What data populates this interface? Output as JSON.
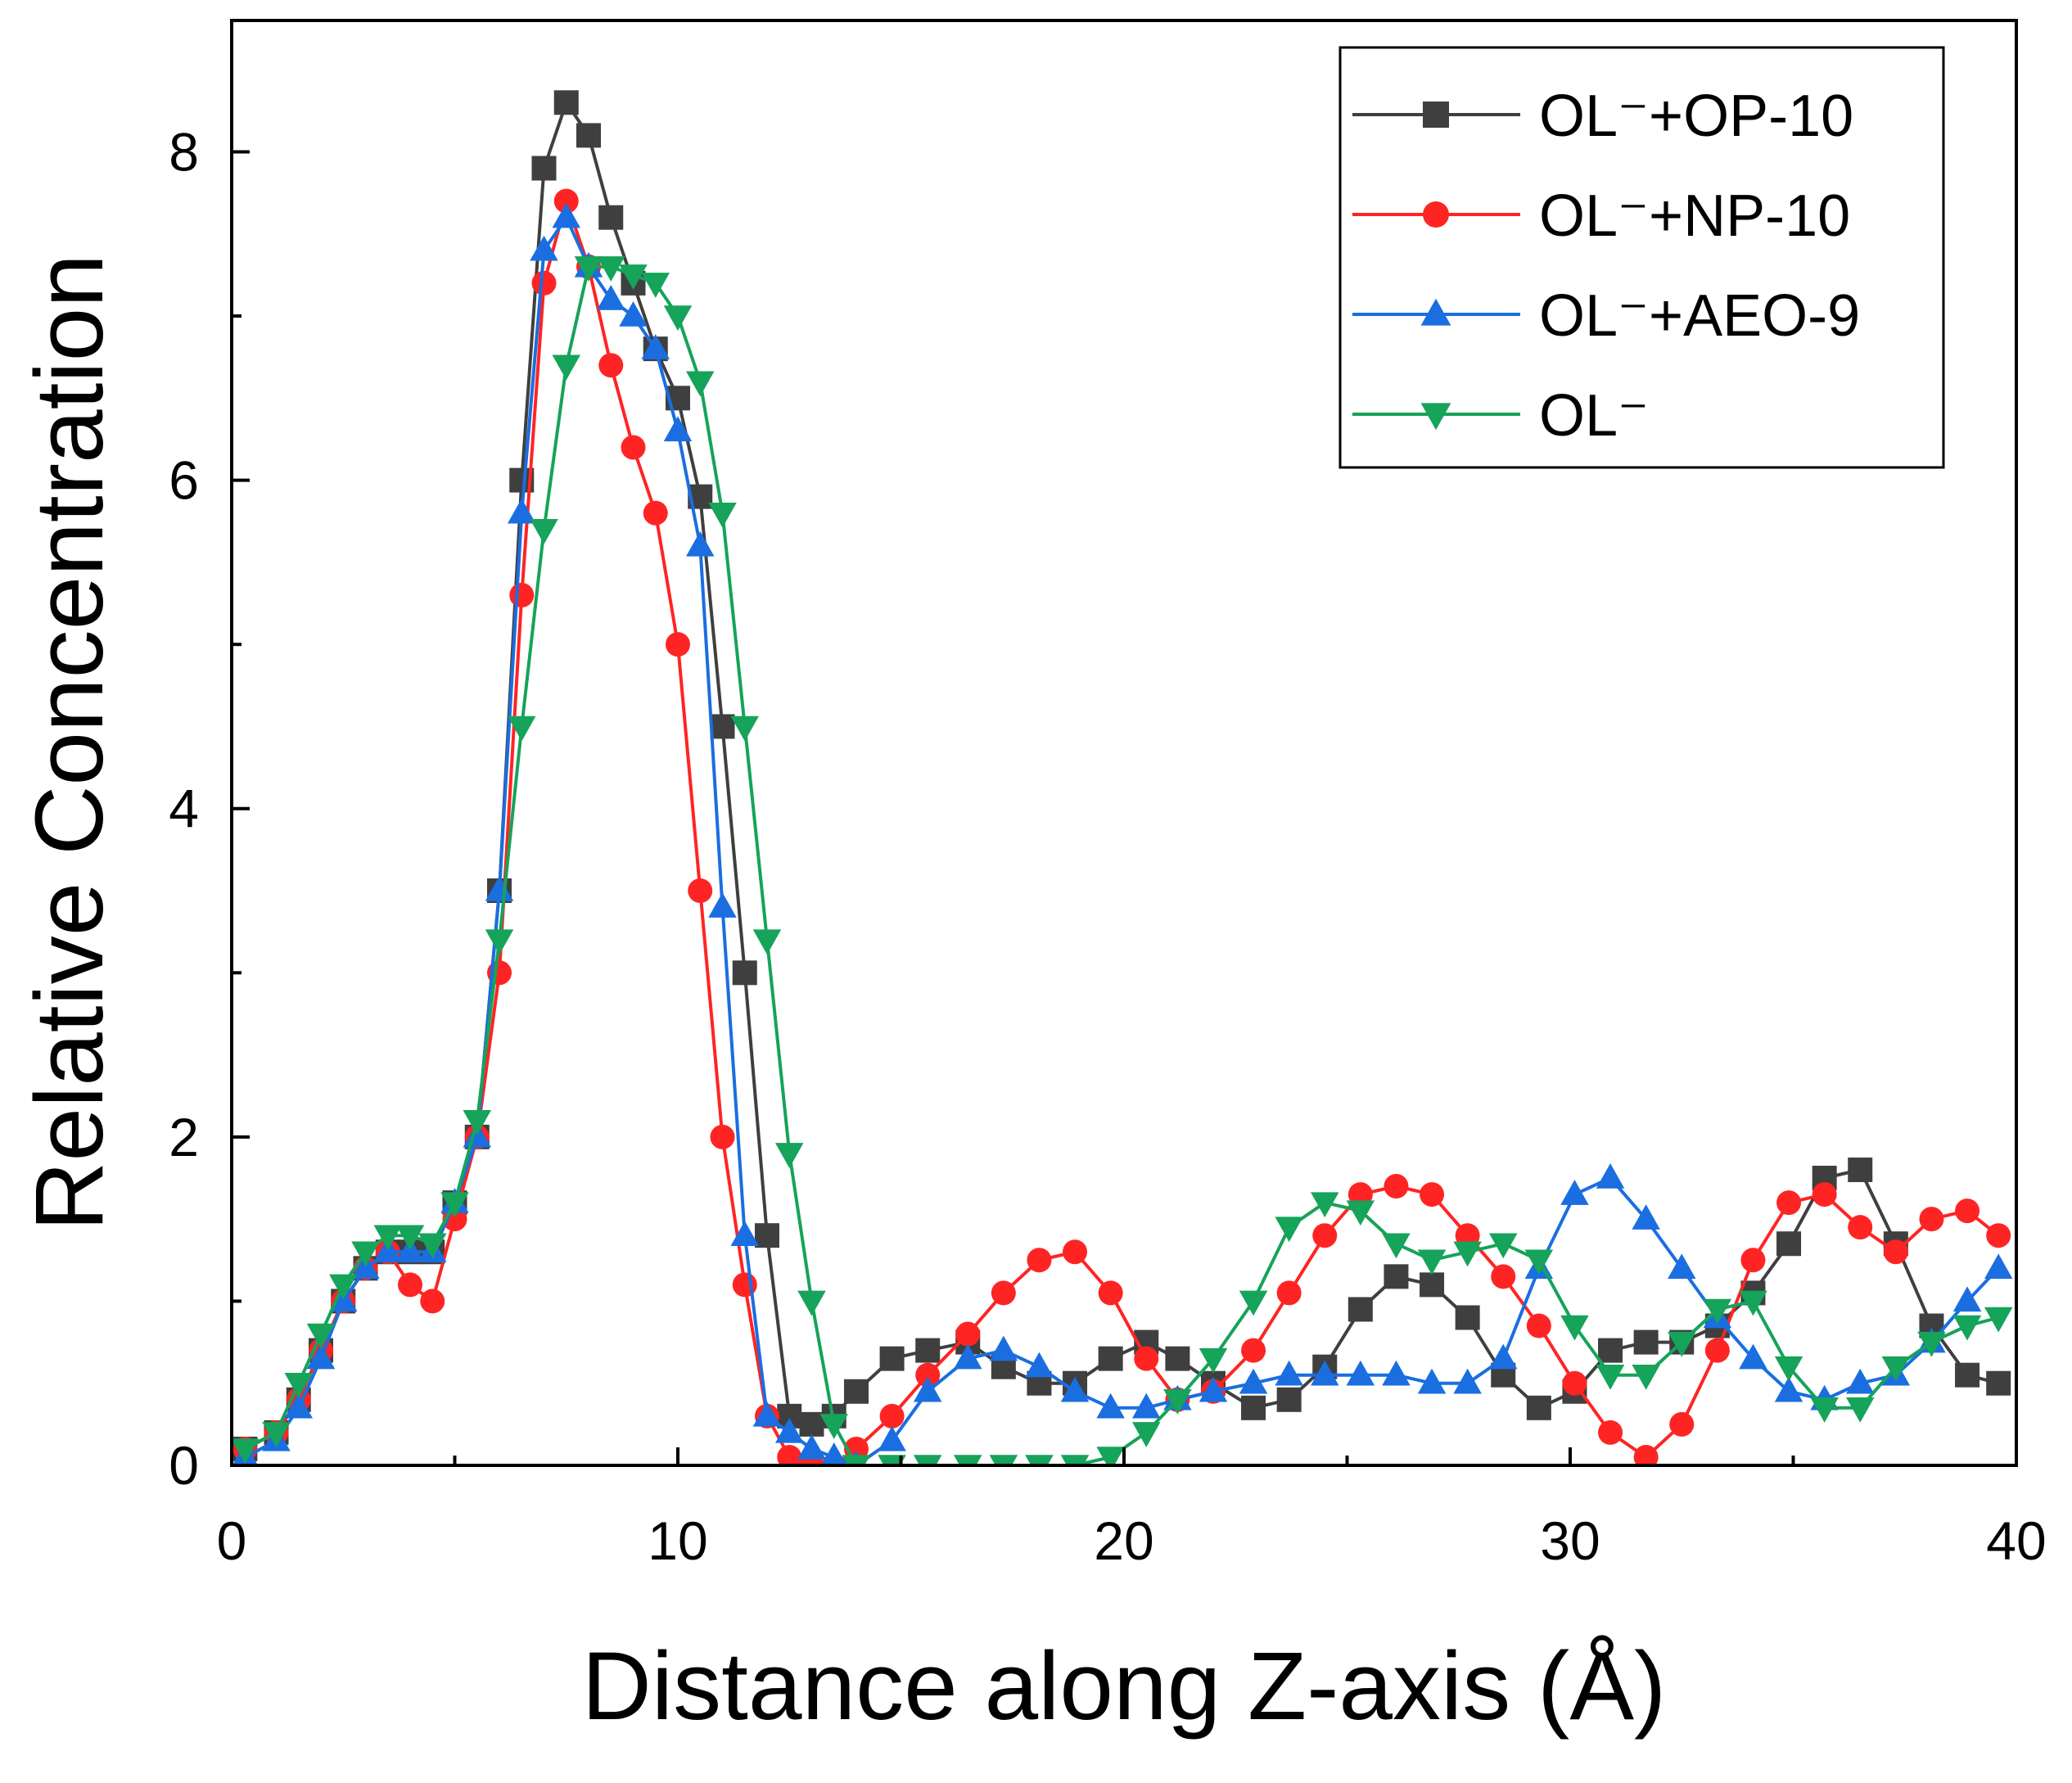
{
  "chart_data": {
    "type": "line",
    "title": "",
    "xlabel": "Distance along Z-axis (Å)",
    "ylabel": "Relative Concentration",
    "xlim": [
      0,
      40
    ],
    "ylim": [
      0,
      8.8
    ],
    "xticks": [
      "0",
      "10",
      "20",
      "30",
      "40"
    ],
    "yticks": [
      "0",
      "2",
      "4",
      "6",
      "8"
    ],
    "xtick_values": [
      0,
      10,
      20,
      30,
      40
    ],
    "ytick_values": [
      0,
      2,
      4,
      6,
      8
    ],
    "grid": false,
    "legend_position": "top-right",
    "series": [
      {
        "name": "OL⁻+OP-10",
        "color": "#3f3f3f",
        "marker": "square",
        "dash": "",
        "x": [
          0.3,
          1.0,
          1.5,
          2.0,
          2.5,
          3.0,
          3.5,
          4.0,
          4.5,
          5.0,
          5.5,
          6.0,
          6.5,
          7.0,
          7.5,
          8.0,
          8.5,
          9.0,
          9.5,
          10.0,
          10.5,
          11.0,
          11.5,
          12.0,
          12.5,
          13.0,
          13.5,
          14.0,
          14.8,
          15.6,
          16.5,
          17.3,
          18.1,
          18.9,
          19.7,
          20.5,
          21.2,
          22.0,
          22.9,
          23.7,
          24.5,
          25.3,
          26.1,
          26.9,
          27.7,
          28.5,
          29.3,
          30.1,
          30.9,
          31.7,
          32.5,
          33.3,
          34.1,
          34.9,
          35.7,
          36.5,
          37.3,
          38.1,
          38.9,
          39.6
        ],
        "values": [
          0.1,
          0.2,
          0.4,
          0.7,
          1.0,
          1.2,
          1.3,
          1.3,
          1.3,
          1.6,
          2.0,
          3.5,
          6.0,
          7.9,
          8.3,
          8.1,
          7.6,
          7.2,
          6.8,
          6.5,
          5.9,
          4.5,
          3.0,
          1.4,
          0.3,
          0.25,
          0.3,
          0.45,
          0.65,
          0.7,
          0.75,
          0.6,
          0.5,
          0.5,
          0.65,
          0.75,
          0.65,
          0.5,
          0.35,
          0.4,
          0.6,
          0.95,
          1.15,
          1.1,
          0.9,
          0.55,
          0.35,
          0.45,
          0.7,
          0.75,
          0.75,
          0.85,
          1.05,
          1.35,
          1.75,
          1.8,
          1.35,
          0.85,
          0.55,
          0.5
        ]
      },
      {
        "name": "OL⁻+NP-10",
        "color": "#ff2424",
        "marker": "circle",
        "dash": "",
        "x": [
          0.3,
          1.0,
          1.5,
          2.0,
          2.5,
          3.0,
          3.5,
          4.0,
          4.5,
          5.0,
          5.5,
          6.0,
          6.5,
          7.0,
          7.5,
          8.0,
          8.5,
          9.0,
          9.5,
          10.0,
          10.5,
          11.0,
          11.5,
          12.0,
          12.5,
          13.0,
          13.5,
          14.0,
          14.8,
          15.6,
          16.5,
          17.3,
          18.1,
          18.9,
          19.7,
          20.5,
          21.2,
          22.0,
          22.9,
          23.7,
          24.5,
          25.3,
          26.1,
          26.9,
          27.7,
          28.5,
          29.3,
          30.1,
          30.9,
          31.7,
          32.5,
          33.3,
          34.1,
          34.9,
          35.7,
          36.5,
          37.3,
          38.1,
          38.9,
          39.6
        ],
        "values": [
          0.1,
          0.2,
          0.4,
          0.7,
          1.0,
          1.2,
          1.3,
          1.1,
          1.0,
          1.5,
          2.0,
          3.0,
          5.3,
          7.2,
          7.7,
          7.3,
          6.7,
          6.2,
          5.8,
          5.0,
          3.5,
          2.0,
          1.1,
          0.3,
          0.05,
          0.0,
          0.0,
          0.1,
          0.3,
          0.55,
          0.8,
          1.05,
          1.25,
          1.3,
          1.05,
          0.65,
          0.4,
          0.45,
          0.7,
          1.05,
          1.4,
          1.65,
          1.7,
          1.65,
          1.4,
          1.15,
          0.85,
          0.5,
          0.2,
          0.05,
          0.25,
          0.7,
          1.25,
          1.6,
          1.65,
          1.45,
          1.3,
          1.5,
          1.55,
          1.4
        ]
      },
      {
        "name": "OL⁻+AEO-9",
        "color": "#1a6ee0",
        "marker": "triangle-up",
        "dash": "",
        "x": [
          0.3,
          1.0,
          1.5,
          2.0,
          2.5,
          3.0,
          3.5,
          4.0,
          4.5,
          5.0,
          5.5,
          6.0,
          6.5,
          7.0,
          7.5,
          8.0,
          8.5,
          9.0,
          9.5,
          10.0,
          10.5,
          11.0,
          11.5,
          12.0,
          12.5,
          13.0,
          13.5,
          14.0,
          14.8,
          15.6,
          16.5,
          17.3,
          18.1,
          18.9,
          19.7,
          20.5,
          21.2,
          22.0,
          22.9,
          23.7,
          24.5,
          25.3,
          26.1,
          26.9,
          27.7,
          28.5,
          29.3,
          30.1,
          30.9,
          31.7,
          32.5,
          33.3,
          34.1,
          34.9,
          35.7,
          36.5,
          37.3,
          38.1,
          38.9,
          39.6
        ],
        "values": [
          0.05,
          0.15,
          0.35,
          0.65,
          1.0,
          1.2,
          1.3,
          1.3,
          1.3,
          1.6,
          2.0,
          3.5,
          5.8,
          7.4,
          7.6,
          7.3,
          7.1,
          7.0,
          6.8,
          6.3,
          5.6,
          3.4,
          1.4,
          0.3,
          0.2,
          0.1,
          0.05,
          0.0,
          0.15,
          0.45,
          0.65,
          0.7,
          0.6,
          0.45,
          0.35,
          0.35,
          0.4,
          0.45,
          0.5,
          0.55,
          0.55,
          0.55,
          0.55,
          0.5,
          0.5,
          0.65,
          1.2,
          1.65,
          1.75,
          1.5,
          1.2,
          0.9,
          0.65,
          0.45,
          0.4,
          0.5,
          0.55,
          0.75,
          1.0,
          1.2
        ]
      },
      {
        "name": "OL⁻",
        "color": "#16a35a",
        "marker": "triangle-down",
        "dash": "",
        "x": [
          0.3,
          1.0,
          1.5,
          2.0,
          2.5,
          3.0,
          3.5,
          4.0,
          4.5,
          5.0,
          5.5,
          6.0,
          6.5,
          7.0,
          7.5,
          8.0,
          8.5,
          9.0,
          9.5,
          10.0,
          10.5,
          11.0,
          11.5,
          12.0,
          12.5,
          13.0,
          13.5,
          14.0,
          14.8,
          15.6,
          16.5,
          17.3,
          18.1,
          18.9,
          19.7,
          20.5,
          21.2,
          22.0,
          22.9,
          23.7,
          24.5,
          25.3,
          26.1,
          26.9,
          27.7,
          28.5,
          29.3,
          30.1,
          30.9,
          31.7,
          32.5,
          33.3,
          34.1,
          34.9,
          35.7,
          36.5,
          37.3,
          38.1,
          38.9,
          39.6
        ],
        "values": [
          0.1,
          0.2,
          0.5,
          0.8,
          1.1,
          1.3,
          1.4,
          1.4,
          1.35,
          1.6,
          2.1,
          3.2,
          4.5,
          5.7,
          6.7,
          7.3,
          7.3,
          7.25,
          7.2,
          7.0,
          6.6,
          5.8,
          4.5,
          3.2,
          1.9,
          1.0,
          0.25,
          0.0,
          0.0,
          0.0,
          0.0,
          0.0,
          0.0,
          0.0,
          0.05,
          0.2,
          0.4,
          0.65,
          1.0,
          1.45,
          1.6,
          1.55,
          1.35,
          1.25,
          1.3,
          1.35,
          1.25,
          0.85,
          0.55,
          0.55,
          0.75,
          0.95,
          1.0,
          0.6,
          0.35,
          0.35,
          0.6,
          0.75,
          0.85,
          0.9
        ]
      }
    ]
  }
}
